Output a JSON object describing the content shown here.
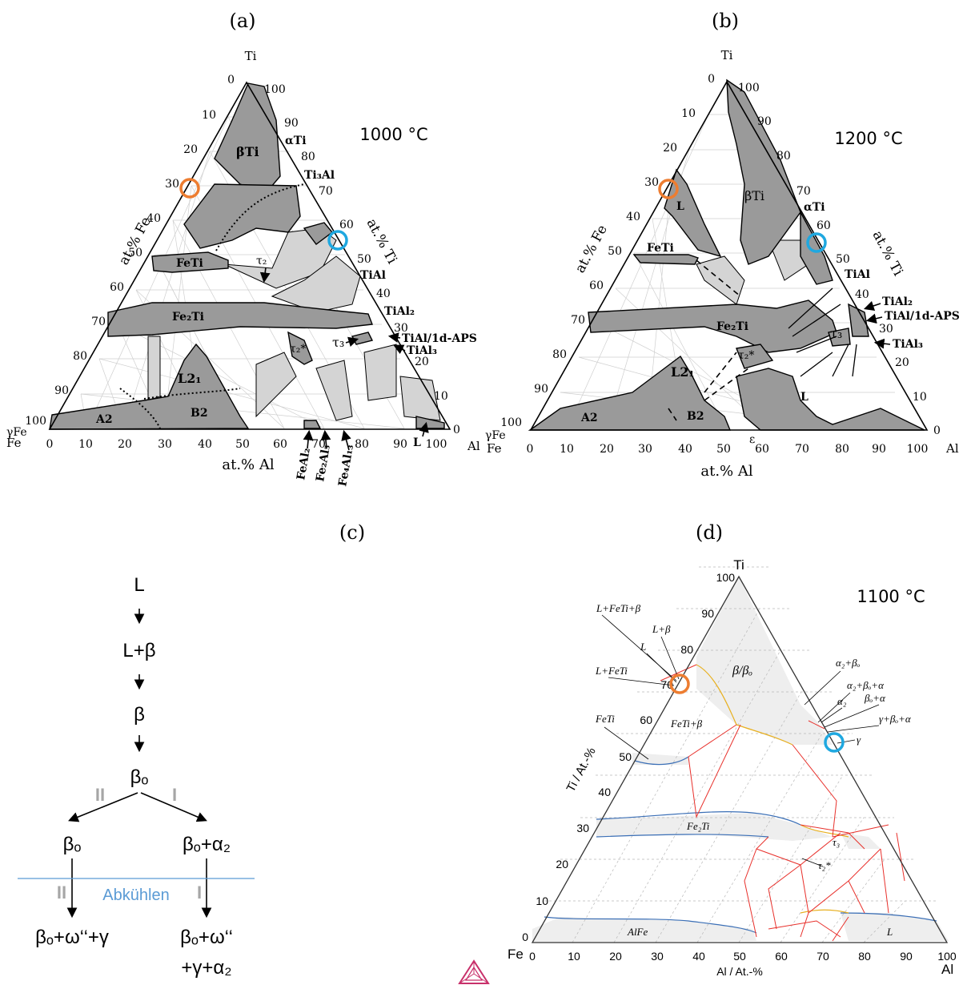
{
  "panel_a": {
    "label": "(a)",
    "temperature": "1000 °C",
    "apex_ti": "Ti",
    "apex_fe": "Fe",
    "apex_al": "Al",
    "axis_fe": "at.% Fe",
    "axis_ti": "at.% Ti",
    "axis_al": "at.% Al",
    "left_ticks": [
      "0",
      "10",
      "20",
      "30",
      "40",
      "50",
      "60",
      "70",
      "80",
      "90",
      "100"
    ],
    "right_ticks": [
      "100",
      "90",
      "80",
      "70",
      "60",
      "50",
      "40",
      "30",
      "20",
      "10",
      "0"
    ],
    "bottom_ticks": [
      "0",
      "10",
      "20",
      "30",
      "40",
      "50",
      "60",
      "70",
      "80",
      "90",
      "100"
    ],
    "phases": {
      "beta_ti": "βTi",
      "alpha_ti": "αTi",
      "ti3al": "Ti₃Al",
      "feti": "FeTi",
      "tau2": "τ₂",
      "tial": "TiAl",
      "tial2": "TiAl₂",
      "fe2ti": "Fe₂Ti",
      "tau3": "τ₃",
      "tial_1d": "TiAl/1d-APS",
      "tial3": "TiAl₃",
      "tau2_star": "τ₂*",
      "l21": "L2₁",
      "a2": "A2",
      "b2": "B2",
      "gamma_fe": "γFe",
      "feal2": "FeAl₂",
      "fe2al5": "Fe₂Al₅",
      "fe4al13": "Fe₄Al₁₃",
      "liquid": "L"
    }
  },
  "panel_b": {
    "label": "(b)",
    "temperature": "1200 °C",
    "apex_ti": "Ti",
    "apex_fe": "Fe",
    "apex_al": "Al",
    "axis_fe": "at.% Fe",
    "axis_ti": "at.% Ti",
    "axis_al": "at.% Al",
    "left_ticks": [
      "0",
      "10",
      "20",
      "30",
      "40",
      "50",
      "60",
      "70",
      "80",
      "90",
      "100"
    ],
    "right_ticks": [
      "100",
      "90",
      "80",
      "70",
      "60",
      "50",
      "40",
      "30",
      "20",
      "10",
      "0"
    ],
    "bottom_ticks": [
      "0",
      "10",
      "20",
      "30",
      "40",
      "50",
      "60",
      "70",
      "80",
      "90",
      "100"
    ],
    "phases": {
      "beta_ti": "βTi",
      "liquid_top": "L",
      "alpha_ti": "αTi",
      "feti": "FeTi",
      "tial": "TiAl",
      "tial2": "TiAl₂",
      "tial_1d": "TiAl/1d-APS",
      "fe2ti": "Fe₂Ti",
      "tau3": "τ₃",
      "tial3": "TiAl₃",
      "tau2_star": "τ₂*",
      "l21": "L2₁",
      "liquid_bottom": "L",
      "a2": "A2",
      "b2": "B2",
      "gamma_fe": "γFe",
      "epsilon": "ε"
    }
  },
  "panel_c": {
    "label": "(c)",
    "steps": [
      "L",
      "L+β",
      "β",
      "βₒ"
    ],
    "left_marker": "II",
    "right_marker": "I",
    "left_branch": "βₒ",
    "right_branch": "βₒ+α₂",
    "cooling_label": "Abkühlen",
    "left_final": "βₒ+ω‘‘+γ",
    "right_final_line1": "βₒ+ω‘‘",
    "right_final_line2": "+γ+α₂",
    "colors": {
      "cooling_line": "#5b9bd5",
      "marker_gray": "#a6a6a6"
    }
  },
  "panel_d": {
    "label": "(d)",
    "temperature": "1100 °C",
    "apex_ti": "Ti",
    "apex_fe": "Fe",
    "apex_al": "Al",
    "axis_ti": "Ti / At.-%",
    "axis_al": "Al / At.-%",
    "left_ticks": [
      "0",
      "10",
      "20",
      "30",
      "40",
      "50",
      "60",
      "70",
      "80",
      "90",
      "100"
    ],
    "bottom_ticks": [
      "0",
      "10",
      "20",
      "30",
      "40",
      "50",
      "60",
      "70",
      "80",
      "90",
      "100"
    ],
    "phases": {
      "l_feti_beta": "L+FeTi+β",
      "l_beta": "L+β",
      "l": "L",
      "l_feti": "L+FeTi",
      "feti": "FeTi",
      "feti_beta": "FeTi+β",
      "beta_betao": "β/βₒ",
      "a2_bo": "α₂+βₒ",
      "a2_bo_a": "α₂+βₒ+α",
      "a2": "α₂",
      "bo_a": "βₒ+α",
      "g_bo_a": "γ+βₒ+α",
      "gamma": "γ",
      "fe2ti": "Fe₂Ti",
      "tau3": "τ₃",
      "tau2_star": "τ₂*",
      "alfe": "AlFe",
      "liquid": "L"
    }
  },
  "colors": {
    "phase_fill": "#9a9a9a",
    "two_phase_fill": "#d4d4d4",
    "orange_circle": "#ed7d31",
    "blue_circle": "#1fa8e0",
    "calphad_fill": "#eeeeee",
    "calphad_red": "#e8302b",
    "calphad_blue": "#3b6fb6",
    "calphad_yellow": "#e8b020",
    "logo": "#c8306a"
  }
}
